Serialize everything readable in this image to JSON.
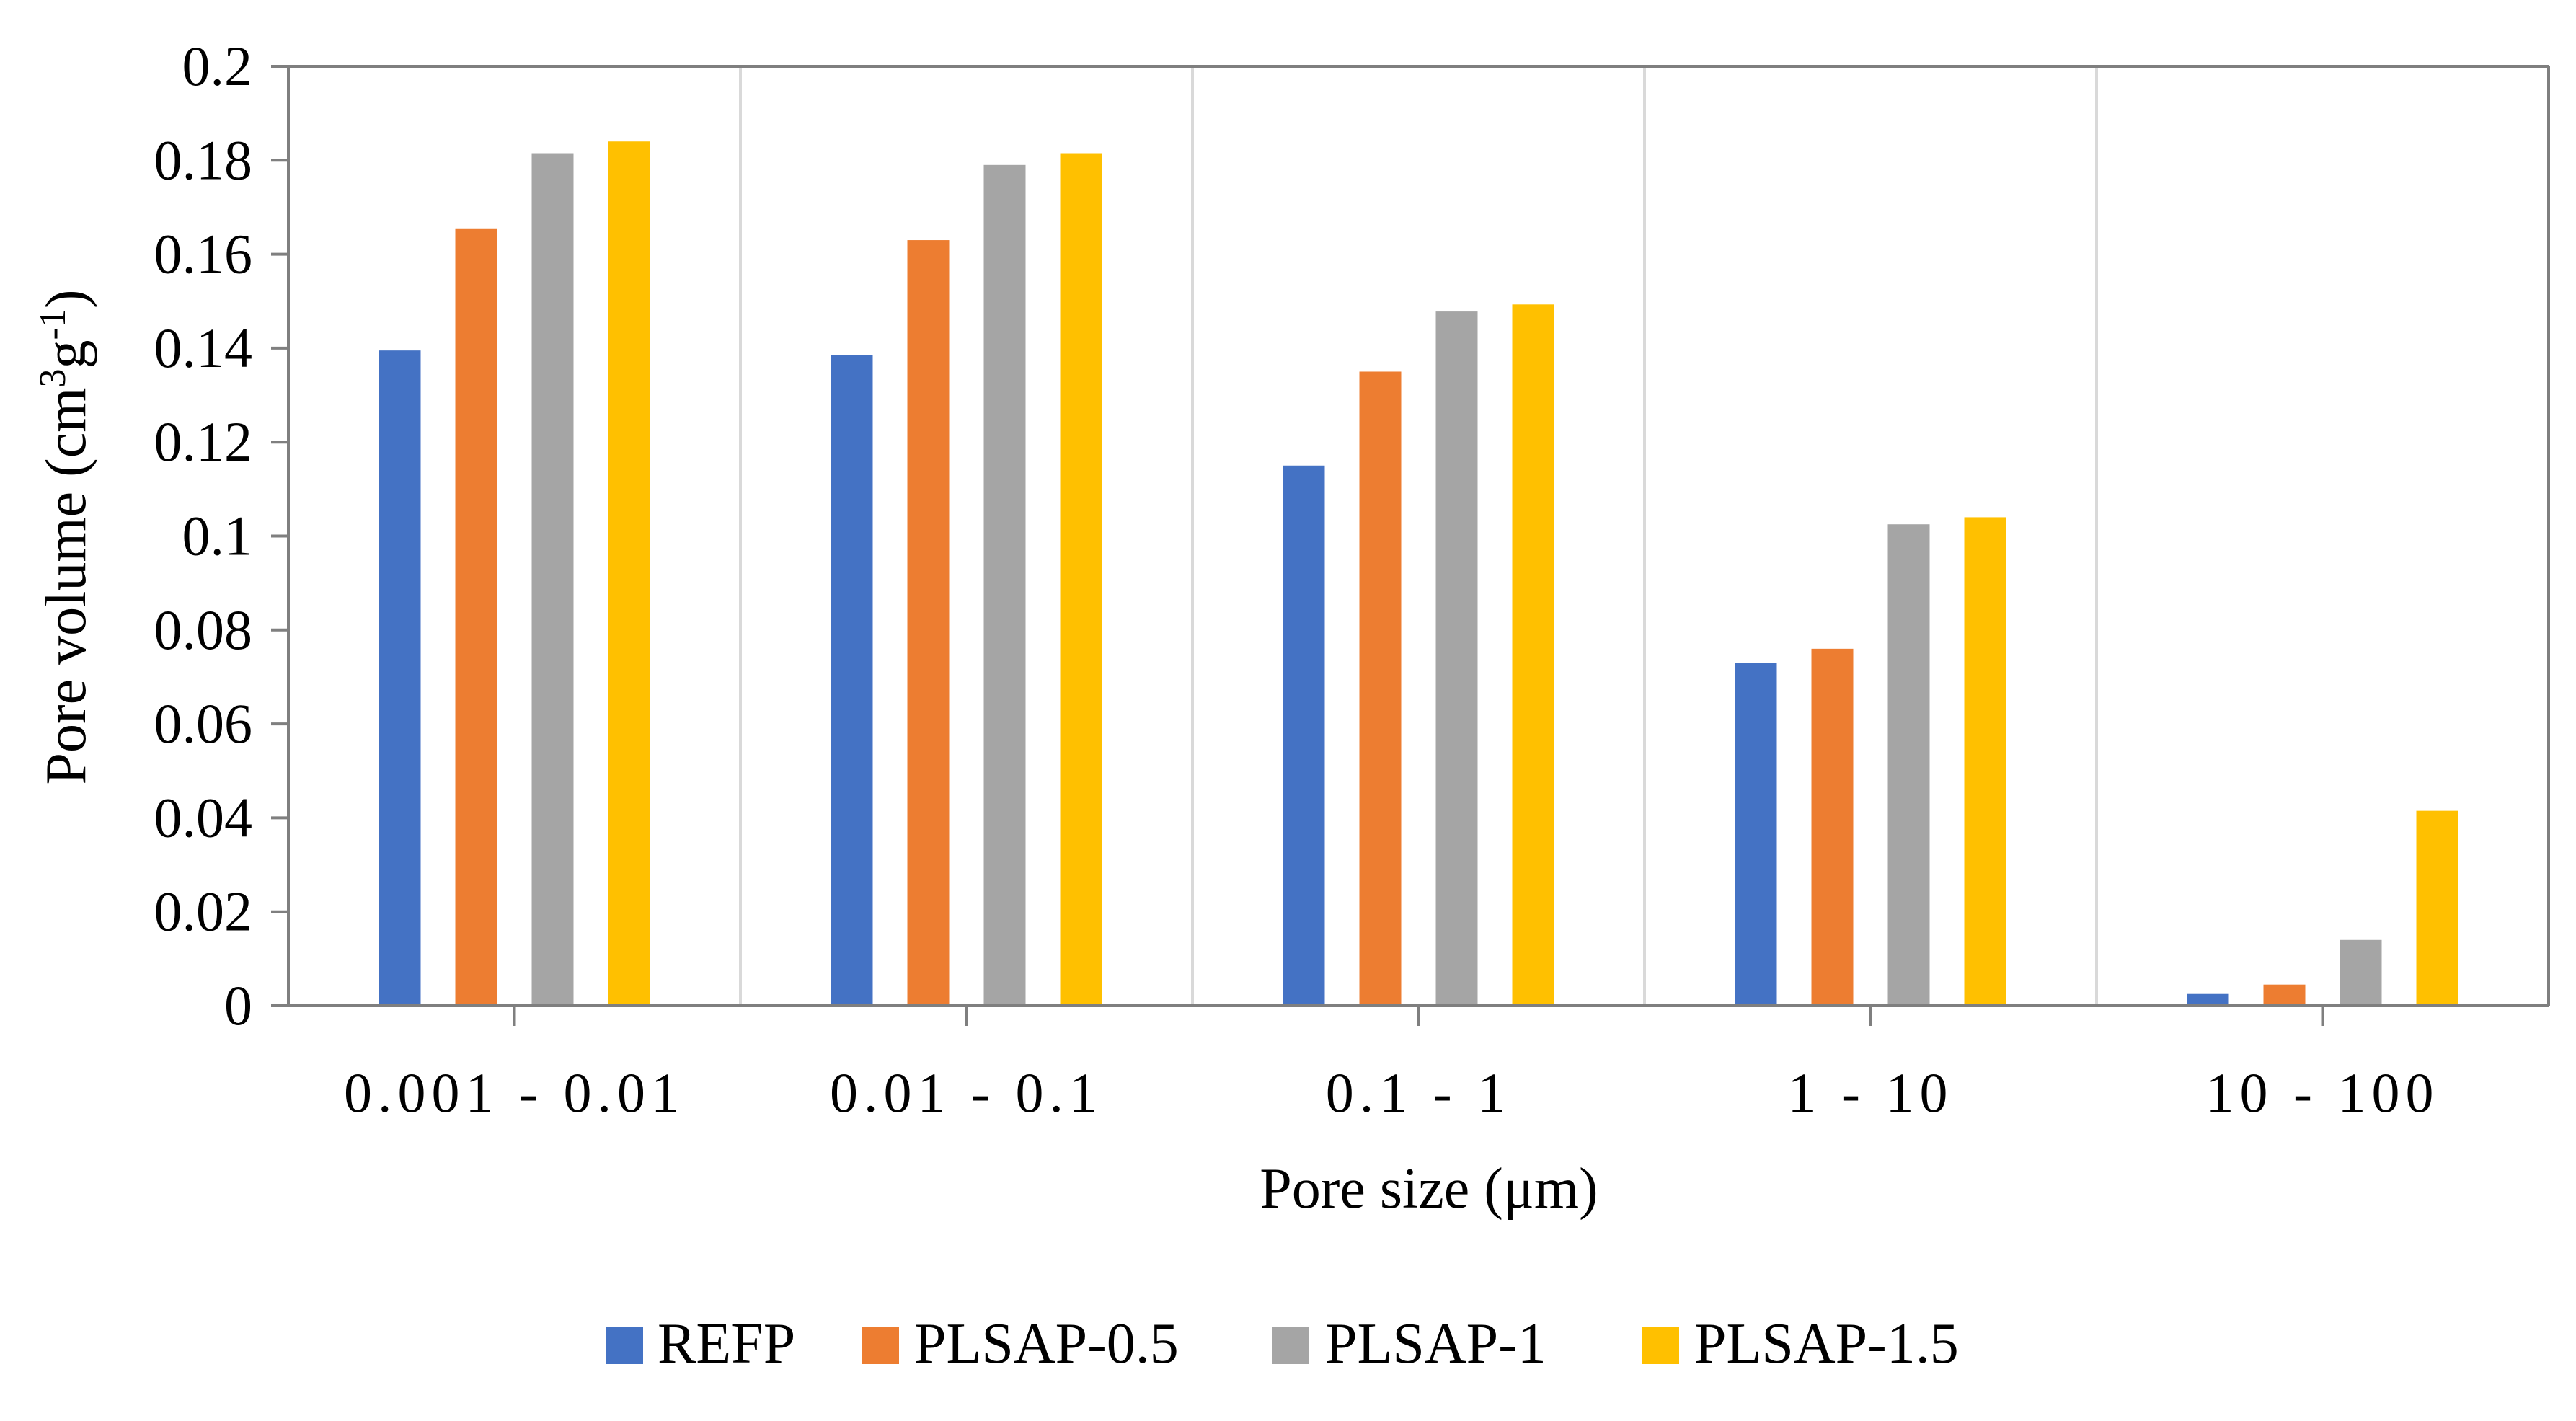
{
  "chart_data": {
    "type": "bar",
    "title": "",
    "xlabel": "Pore size (μm)",
    "ylabel": "Pore volume (cm",
    "ylabel_sup1": "3",
    "ylabel_mid": "g",
    "ylabel_sup2": "-1",
    "ylabel_end": ")",
    "ylim": [
      0,
      0.2
    ],
    "yticks": [
      "0",
      "0.02",
      "0.04",
      "0.06",
      "0.08",
      "0.1",
      "0.12",
      "0.14",
      "0.16",
      "0.18",
      "0.2"
    ],
    "grid": "vertical separators between categories",
    "legend_position": "bottom",
    "categories": [
      "0.001 - 0.01",
      "0.01 - 0.1",
      "0.1 - 1",
      "1 - 10",
      "10 - 100"
    ],
    "series": [
      {
        "name": "REFP",
        "color": "#4472C4",
        "values": [
          0.1395,
          0.1385,
          0.115,
          0.073,
          0.0025
        ]
      },
      {
        "name": "PLSAP-0.5",
        "color": "#ED7D31",
        "values": [
          0.1655,
          0.163,
          0.135,
          0.076,
          0.0045
        ]
      },
      {
        "name": "PLSAP-1",
        "color": "#A5A5A5",
        "values": [
          0.1815,
          0.179,
          0.1478,
          0.1025,
          0.014
        ]
      },
      {
        "name": "PLSAP-1.5",
        "color": "#FFC000",
        "values": [
          0.184,
          0.1815,
          0.1493,
          0.104,
          0.0415
        ]
      }
    ]
  }
}
